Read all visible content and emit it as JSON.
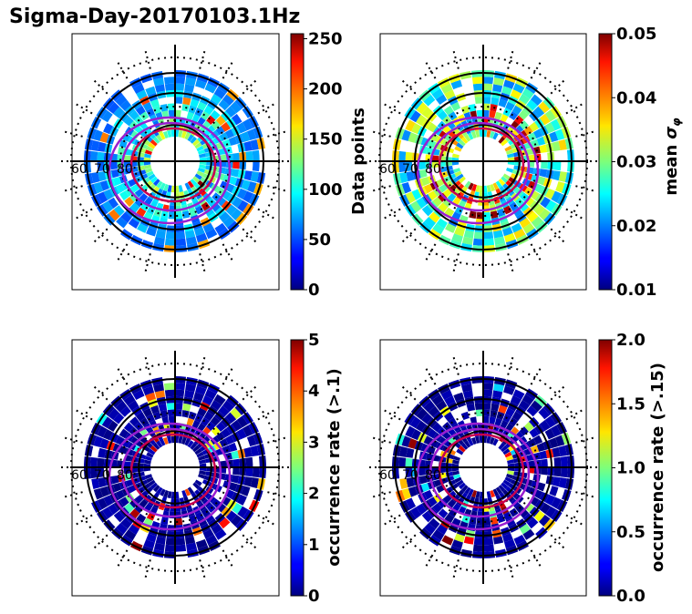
{
  "figure": {
    "title": "Sigma-Day-20170103.1Hz"
  },
  "colors": {
    "ring_line": "#000000",
    "oval_line": "#9a1fd0",
    "oval_inner": "#c80050"
  },
  "chart_data": [
    {
      "type": "heatmap",
      "projection": "polar (geomagnetic latitude / MLT)",
      "colorbar_label": "Data points",
      "colorbar_ticks": [
        "0",
        "50",
        "100",
        "150",
        "200",
        "250"
      ],
      "clim": [
        0,
        255
      ],
      "colormap": "jet",
      "latitude_labels": [
        "60",
        "70",
        "80"
      ],
      "dominant_level": 0.2
    },
    {
      "type": "heatmap",
      "projection": "polar (geomagnetic latitude / MLT)",
      "colorbar_label": "mean σφ",
      "colorbar_label_text": "mean",
      "colorbar_label_symbol": "σ",
      "colorbar_label_sub": "φ",
      "colorbar_ticks": [
        "0.01",
        "0.02",
        "0.03",
        "0.04",
        "0.05"
      ],
      "clim": [
        0.01,
        0.05
      ],
      "colormap": "jet",
      "latitude_labels": [
        "60",
        "70",
        "80"
      ],
      "dominant_level": 0.45
    },
    {
      "type": "heatmap",
      "projection": "polar (geomagnetic latitude / MLT)",
      "colorbar_label": "occurrence rate (>.1)",
      "colorbar_ticks": [
        "0",
        "1",
        "2",
        "3",
        "4",
        "5"
      ],
      "clim": [
        0,
        5
      ],
      "colormap": "jet",
      "latitude_labels": [
        "60",
        "70",
        "80"
      ],
      "dominant_level": 0.0
    },
    {
      "type": "heatmap",
      "projection": "polar (geomagnetic latitude / MLT)",
      "colorbar_label": "occurrence rate (>.15)",
      "colorbar_ticks": [
        "0.0",
        "0.5",
        "1.0",
        "1.5",
        "2.0"
      ],
      "clim": [
        0.0,
        2.0
      ],
      "colormap": "jet",
      "latitude_labels": [
        "60",
        "70",
        "80"
      ],
      "dominant_level": 0.0
    }
  ]
}
